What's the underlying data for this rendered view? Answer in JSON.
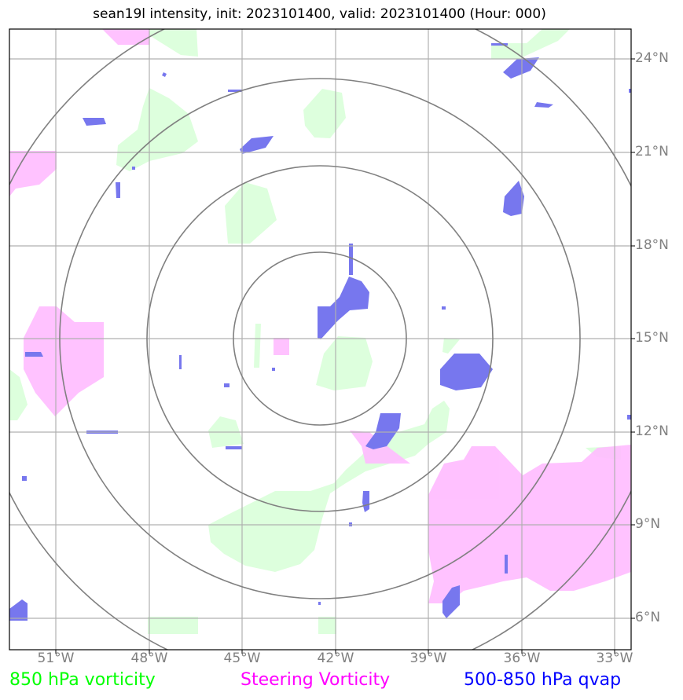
{
  "title": "sean19l intensity, init: 2023101400, valid: 2023101400 (Hour: 000)",
  "lat_labels": [
    "24°N",
    "21°N",
    "18°N",
    "15°N",
    "12°N",
    "9°N",
    "6°N"
  ],
  "lon_labels": [
    "51°W",
    "48°W",
    "45°W",
    "42°W",
    "39°W",
    "36°W",
    "33°W"
  ],
  "legend": {
    "vort850": {
      "label": "850 hPa vorticity",
      "color": "#00ff00"
    },
    "steering": {
      "label": "Steering Vorticity",
      "color": "#ff00ff"
    },
    "qvap": {
      "label": "500-850 hPa qvap",
      "color": "#0000ff"
    }
  },
  "colors": {
    "vort850_fill": "#ddffdd",
    "steering_fill": "#ffbbff",
    "qvap_fill": "#7777ee",
    "grid": "#b0b0b0",
    "ring": "#808080"
  }
}
